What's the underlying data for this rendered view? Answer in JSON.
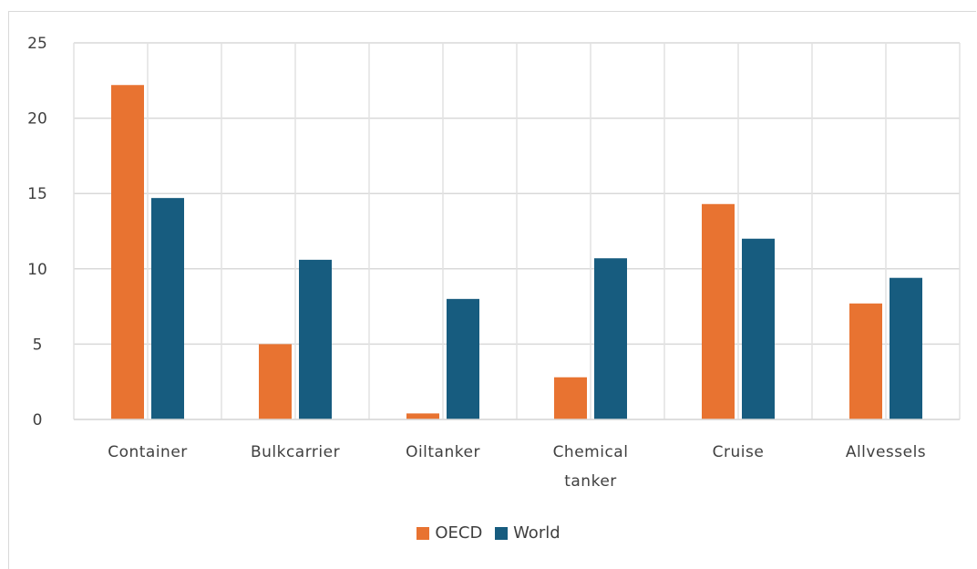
{
  "chart_data": {
    "type": "bar",
    "categories": [
      "Container",
      "Bulk carrier",
      "Oil tanker",
      "Chemical tanker",
      "Cruise",
      "All vessels"
    ],
    "category_labels": [
      [
        "Container"
      ],
      [
        "Bulkcarrier"
      ],
      [
        "Oiltanker"
      ],
      [
        "Chemical",
        "tanker"
      ],
      [
        "Cruise"
      ],
      [
        "Allvessels"
      ]
    ],
    "series": [
      {
        "name": "OECD",
        "color": "#E87331",
        "values": [
          22.2,
          5.0,
          0.4,
          2.8,
          14.3,
          7.7
        ]
      },
      {
        "name": "World",
        "color": "#175C7F",
        "values": [
          14.7,
          10.6,
          8.0,
          10.7,
          12.0,
          9.4
        ]
      }
    ],
    "ylim": [
      0,
      25
    ],
    "yticks": [
      "0",
      "5",
      "10",
      "15",
      "20",
      "25"
    ],
    "grid": true,
    "legend_position": "bottom"
  }
}
